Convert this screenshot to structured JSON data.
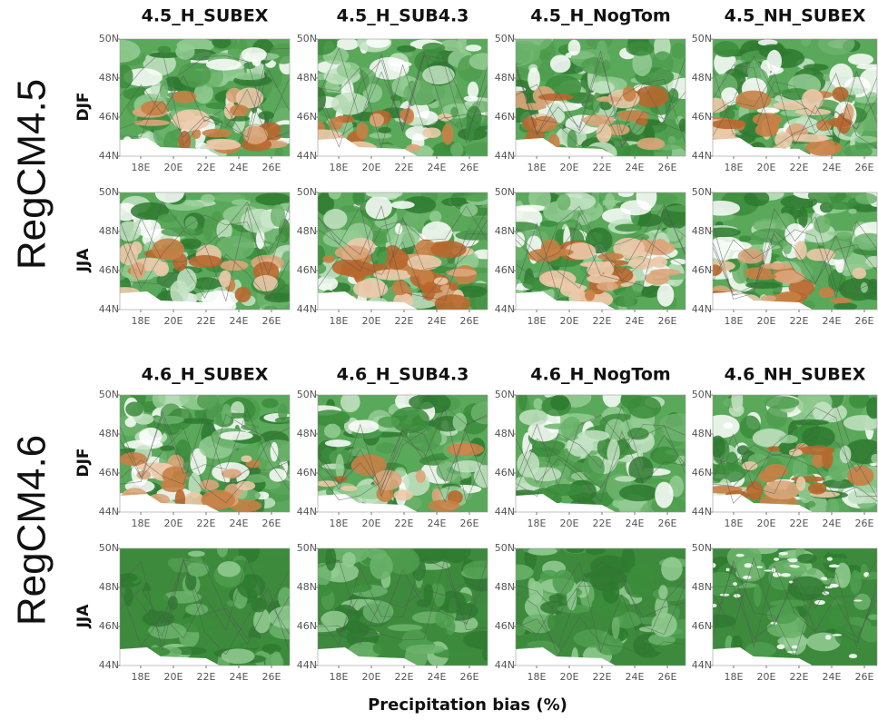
{
  "groups": [
    {
      "label": "RegCM4.5",
      "seasons": [
        "DJF",
        "JJA"
      ],
      "columns": [
        "4.5_H_SUBEX",
        "4.5_H_SUB4.3",
        "4.5_H_NogTom",
        "4.5_NH_SUBEX"
      ]
    },
    {
      "label": "RegCM4.6",
      "seasons": [
        "DJF",
        "JJA"
      ],
      "columns": [
        "4.6_H_SUBEX",
        "4.6_H_SUB4.3",
        "4.6_H_NogTom",
        "4.6_NH_SUBEX"
      ]
    }
  ],
  "lat_ticks": [
    "50N",
    "48N",
    "46N",
    "44N"
  ],
  "lon_ticks": [
    "18E",
    "20E",
    "22E",
    "24E",
    "26E"
  ],
  "xlabel": "Precipitation bias (%)"
}
